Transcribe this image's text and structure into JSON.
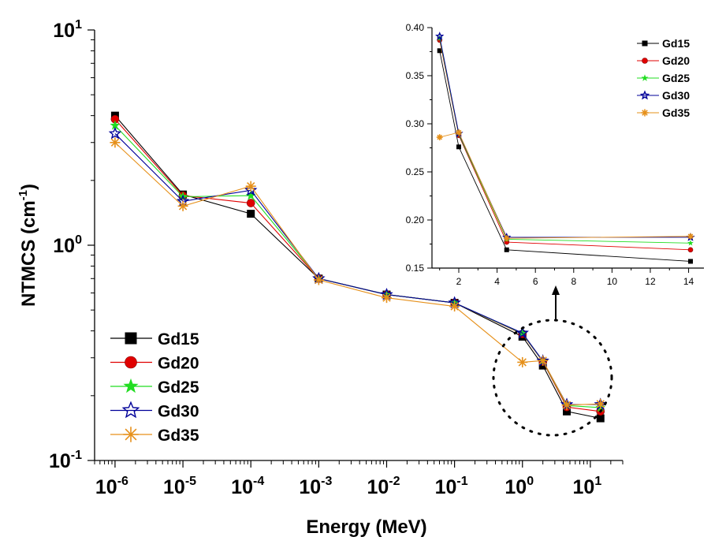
{
  "chart_data": [
    {
      "id": "main",
      "type": "line",
      "x_scale": "log",
      "y_scale": "log",
      "xlabel": "Energy (MeV)",
      "ylabel_prefix": "NTMCS (cm",
      "ylabel_sup": "-1",
      "ylabel_suffix": ")",
      "xlim": [
        5e-07,
        30
      ],
      "ylim": [
        0.1,
        10
      ],
      "x_ticks": [
        {
          "v": 1e-06,
          "base": "10",
          "exp": "-6"
        },
        {
          "v": 1e-05,
          "base": "10",
          "exp": "-5"
        },
        {
          "v": 0.0001,
          "base": "10",
          "exp": "-4"
        },
        {
          "v": 0.001,
          "base": "10",
          "exp": "-3"
        },
        {
          "v": 0.01,
          "base": "10",
          "exp": "-2"
        },
        {
          "v": 0.1,
          "base": "10",
          "exp": "-1"
        },
        {
          "v": 1,
          "base": "10",
          "exp": "0"
        },
        {
          "v": 10,
          "base": "10",
          "exp": "1"
        }
      ],
      "y_ticks": [
        {
          "v": 10,
          "base": "10",
          "exp": "1"
        },
        {
          "v": 1,
          "base": "10",
          "exp": "0"
        },
        {
          "v": 0.1,
          "base": "10",
          "exp": "-1"
        }
      ],
      "x": [
        1e-06,
        1e-05,
        0.0001,
        0.001,
        0.01,
        0.1,
        1.0,
        2.0,
        4.5,
        14.1
      ],
      "series": [
        {
          "name": "Gd15",
          "color": "#000000",
          "marker": "square",
          "values": [
            4.0,
            1.72,
            1.4,
            0.7,
            0.59,
            0.54,
            0.376,
            0.276,
            0.169,
            0.157
          ]
        },
        {
          "name": "Gd20",
          "color": "#e00000",
          "marker": "circle",
          "values": [
            3.85,
            1.7,
            1.57,
            0.7,
            0.59,
            0.54,
            0.387,
            0.288,
            0.177,
            0.169
          ]
        },
        {
          "name": "Gd25",
          "color": "#22dd22",
          "marker": "star",
          "values": [
            3.6,
            1.68,
            1.7,
            0.7,
            0.59,
            0.54,
            0.389,
            0.289,
            0.18,
            0.176
          ]
        },
        {
          "name": "Gd30",
          "color": "#000099",
          "marker": "star-open",
          "values": [
            3.3,
            1.6,
            1.8,
            0.7,
            0.59,
            0.54,
            0.391,
            0.29,
            0.182,
            0.182
          ]
        },
        {
          "name": "Gd35",
          "color": "#e6901a",
          "marker": "asterisk",
          "values": [
            3.0,
            1.52,
            1.88,
            0.69,
            0.57,
            0.52,
            0.286,
            0.291,
            0.181,
            0.183
          ]
        }
      ],
      "legend_position": "bottom-left"
    },
    {
      "id": "inset",
      "type": "line",
      "x_scale": "linear",
      "y_scale": "linear",
      "xlim": [
        0.6,
        14.8
      ],
      "ylim": [
        0.15,
        0.4
      ],
      "x_ticks": [
        2,
        4,
        6,
        8,
        10,
        12,
        14
      ],
      "y_ticks": [
        "0.15",
        "0.20",
        "0.25",
        "0.30",
        "0.35",
        "0.40"
      ],
      "x": [
        1.0,
        2.0,
        4.5,
        14.1
      ],
      "series": [
        {
          "name": "Gd15",
          "color": "#000000",
          "marker": "square",
          "values": [
            0.376,
            0.276,
            0.169,
            0.157
          ]
        },
        {
          "name": "Gd20",
          "color": "#e00000",
          "marker": "circle",
          "values": [
            0.387,
            0.288,
            0.177,
            0.169
          ]
        },
        {
          "name": "Gd25",
          "color": "#22dd22",
          "marker": "star",
          "values": [
            0.389,
            0.289,
            0.18,
            0.176
          ]
        },
        {
          "name": "Gd30",
          "color": "#000099",
          "marker": "star-open",
          "values": [
            0.391,
            0.29,
            0.182,
            0.182
          ]
        },
        {
          "name": "Gd35",
          "color": "#e6901a",
          "marker": "asterisk",
          "values": [
            0.286,
            0.291,
            0.181,
            0.183
          ]
        }
      ],
      "legend_position": "top-right"
    }
  ]
}
